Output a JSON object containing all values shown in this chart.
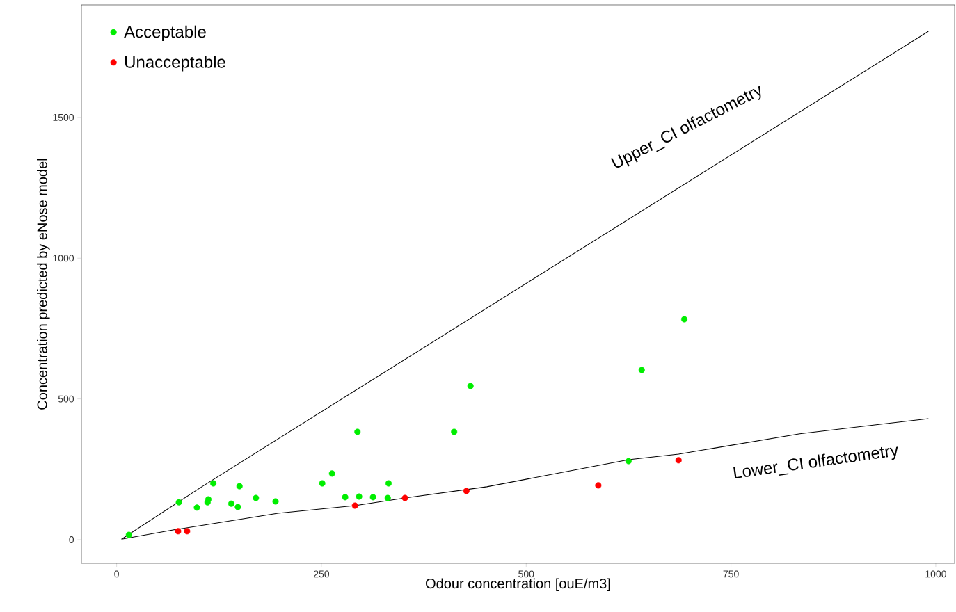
{
  "chart_data": {
    "type": "scatter",
    "xlabel": "Odour concentration [ouE/m3]",
    "ylabel": "Concentration predicted by eNose model",
    "xlim": [
      -43,
      1023
    ],
    "ylim": [
      -84,
      1900
    ],
    "xticks": [
      0,
      250,
      500,
      750,
      1000
    ],
    "yticks": [
      0,
      500,
      1000,
      1500
    ],
    "grid": false,
    "legend": "top left",
    "series": [
      {
        "name": "Acceptable",
        "color": "#00ee00",
        "marker": "circle",
        "x": [
          15,
          76,
          98,
          111,
          112,
          118,
          140,
          148,
          150,
          170,
          194,
          251,
          263,
          279,
          294,
          296,
          313,
          331,
          332,
          412,
          432,
          625,
          641,
          693
        ],
        "values": [
          17,
          133,
          114,
          133,
          143,
          200,
          128,
          116,
          190,
          148,
          136,
          200,
          235,
          151,
          383,
          153,
          151,
          148,
          200,
          383,
          546,
          279,
          603,
          783
        ]
      },
      {
        "name": "Unacceptable",
        "color": "#ff0000",
        "marker": "circle",
        "x": [
          75,
          86,
          291,
          352,
          427,
          588,
          686
        ],
        "values": [
          30,
          30,
          121,
          148,
          173,
          193,
          282
        ]
      },
      {
        "color": "#000000",
        "type": "line",
        "marker": "none",
        "line_style": "solid",
        "x": [
          6,
          104,
          991
        ],
        "values": [
          2,
          188,
          1806
        ]
      },
      {
        "color": "#000000",
        "type": "line",
        "marker": "none",
        "line_style": "solid",
        "x": [
          6,
          70,
          197,
          291,
          352,
          452,
          625,
          686,
          834,
          991
        ],
        "values": [
          2,
          35,
          94,
          121,
          148,
          188,
          284,
          304,
          376,
          430
        ]
      }
    ],
    "annotations": [
      "Upper_CI olfactometry",
      "Lower_CI olfactometry"
    ]
  }
}
